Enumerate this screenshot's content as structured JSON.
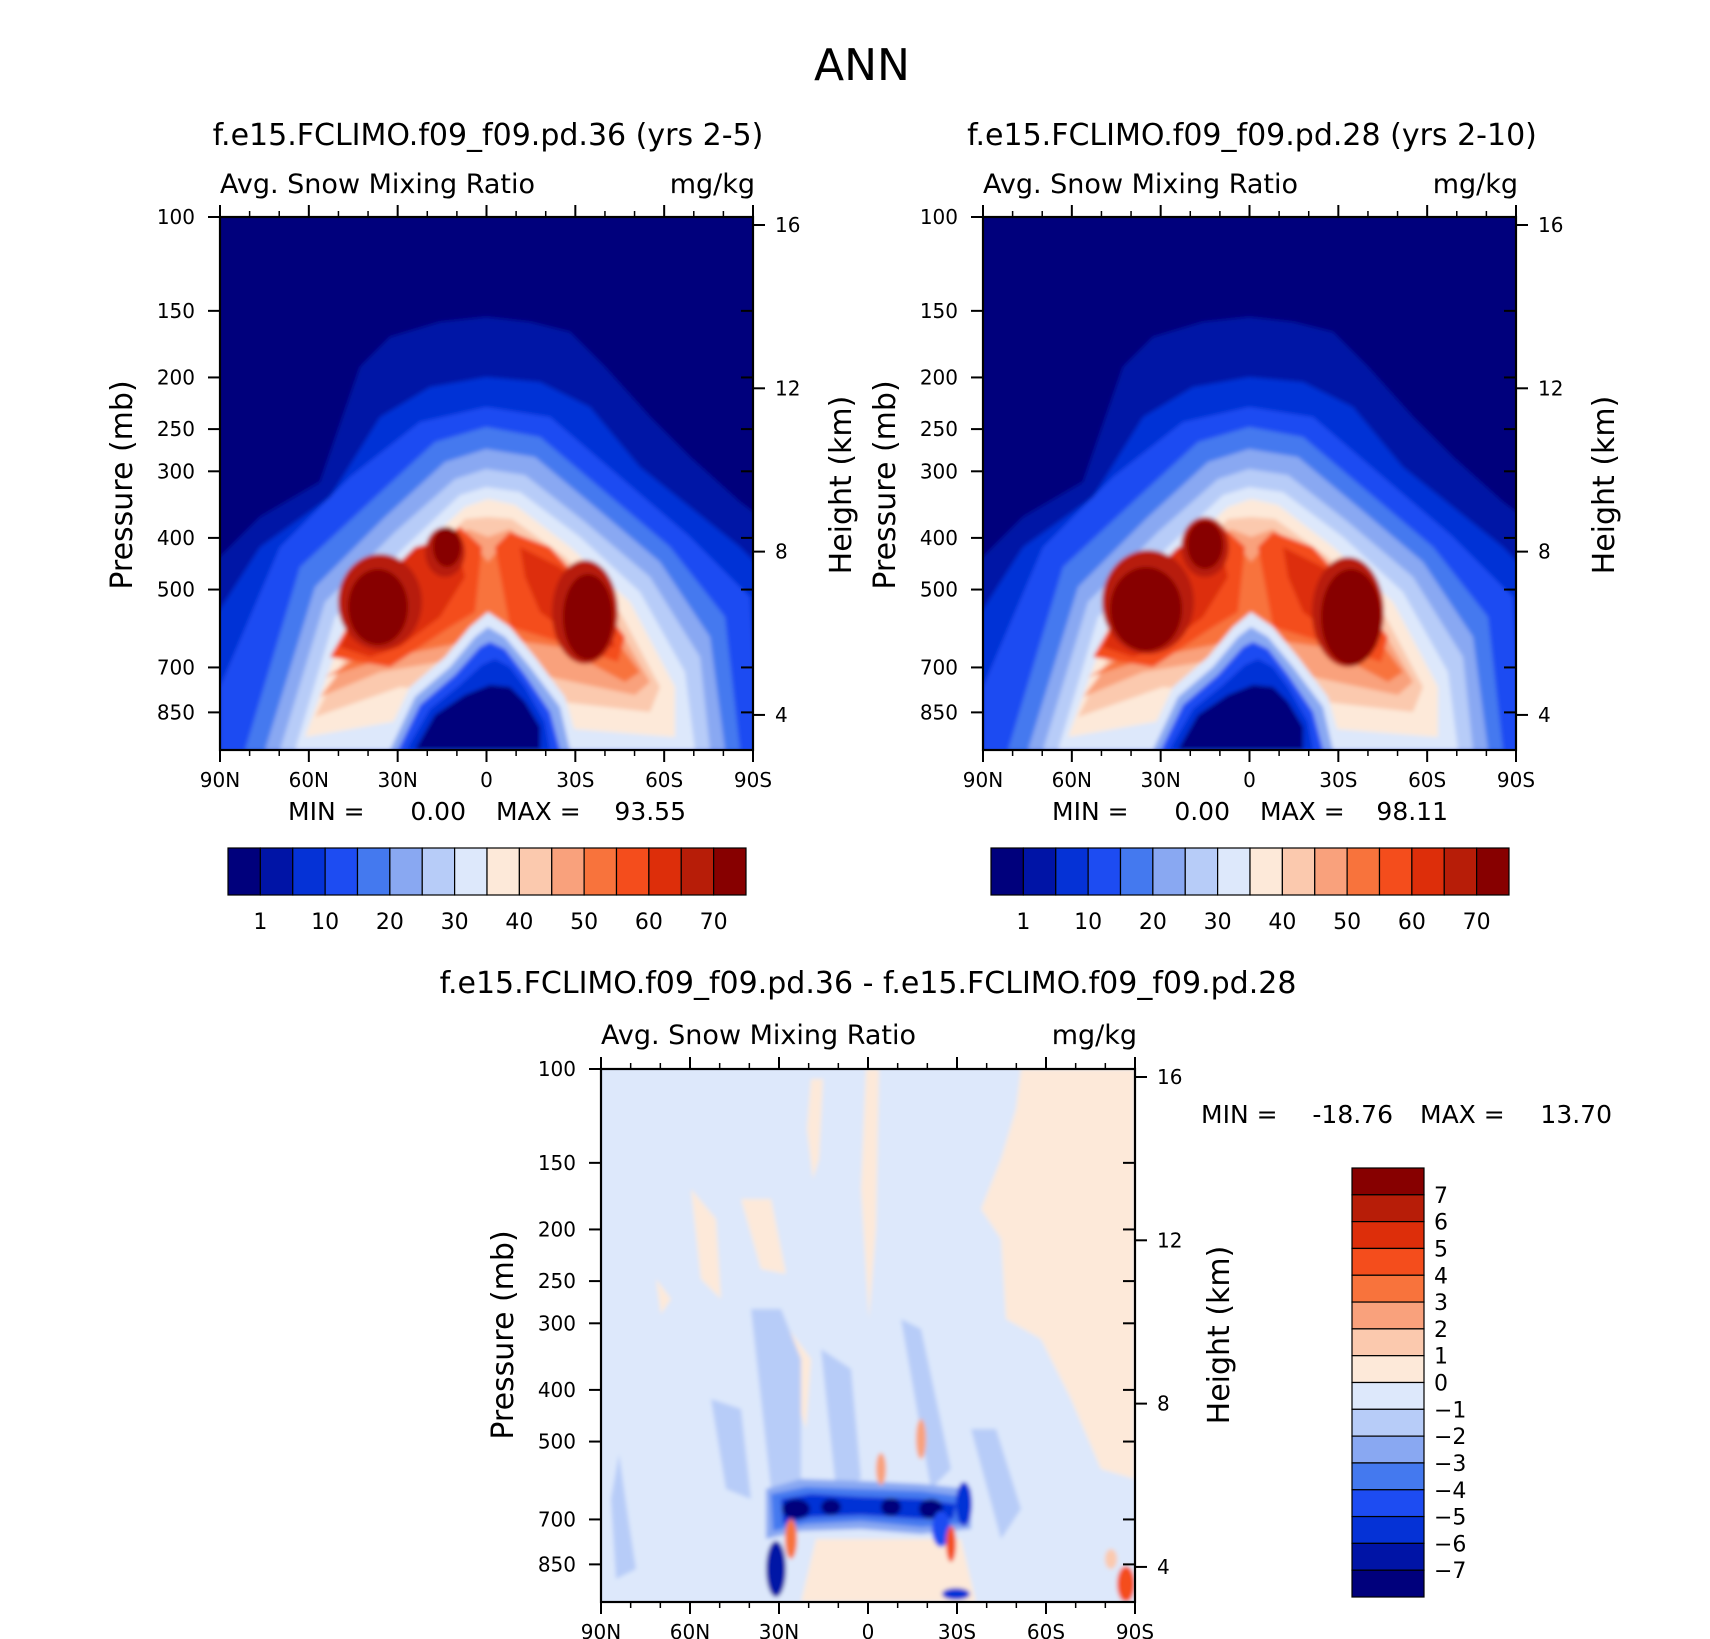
{
  "figure_title": "ANN",
  "chart_data": [
    {
      "type": "contour",
      "title": "f.e15.FCLIMO.f09_f09.pd.36 (yrs 2-5)",
      "variable": "Avg. Snow Mixing Ratio",
      "units": "mg/kg",
      "xlabel": "",
      "ylabel": "Pressure (mb)",
      "ylabel_right": "Height (km)",
      "x_ticks": [
        "90N",
        "60N",
        "30N",
        "0",
        "30S",
        "60S",
        "90S"
      ],
      "y_ticks": [
        "100",
        "150",
        "200",
        "250",
        "300",
        "400",
        "500",
        "700",
        "850"
      ],
      "y_ticks_right": [
        "16",
        "12",
        "8",
        "4"
      ],
      "ylim_mb": [
        1000,
        100
      ],
      "min_label": "MIN =",
      "min_value": "0.00",
      "max_label": "MAX =",
      "max_value": "93.55",
      "colorbar_levels": [
        "1",
        "10",
        "20",
        "30",
        "40",
        "50",
        "60",
        "70"
      ],
      "colors": [
        "#00007c",
        "#0014a6",
        "#0532d6",
        "#1d4cf2",
        "#4479ef",
        "#89a8f2",
        "#b7ccf8",
        "#dde8fb",
        "#fde9d9",
        "#fbc9ae",
        "#f9a17c",
        "#f8733c",
        "#f44d1c",
        "#dd2e0a",
        "#b71d08",
        "#870000"
      ]
    },
    {
      "type": "contour",
      "title": "f.e15.FCLIMO.f09_f09.pd.28 (yrs 2-10)",
      "variable": "Avg. Snow Mixing Ratio",
      "units": "mg/kg",
      "xlabel": "",
      "ylabel": "Pressure (mb)",
      "ylabel_right": "Height (km)",
      "x_ticks": [
        "90N",
        "60N",
        "30N",
        "0",
        "30S",
        "60S",
        "90S"
      ],
      "y_ticks": [
        "100",
        "150",
        "200",
        "250",
        "300",
        "400",
        "500",
        "700",
        "850"
      ],
      "y_ticks_right": [
        "16",
        "12",
        "8",
        "4"
      ],
      "ylim_mb": [
        1000,
        100
      ],
      "min_label": "MIN =",
      "min_value": "0.00",
      "max_label": "MAX =",
      "max_value": "98.11",
      "colorbar_levels": [
        "1",
        "10",
        "20",
        "30",
        "40",
        "50",
        "60",
        "70"
      ],
      "colors": [
        "#00007c",
        "#0014a6",
        "#0532d6",
        "#1d4cf2",
        "#4479ef",
        "#89a8f2",
        "#b7ccf8",
        "#dde8fb",
        "#fde9d9",
        "#fbc9ae",
        "#f9a17c",
        "#f8733c",
        "#f44d1c",
        "#dd2e0a",
        "#b71d08",
        "#870000"
      ]
    },
    {
      "type": "contour",
      "title": "f.e15.FCLIMO.f09_f09.pd.36 - f.e15.FCLIMO.f09_f09.pd.28",
      "variable": "Avg. Snow Mixing Ratio",
      "units": "mg/kg",
      "xlabel": "",
      "ylabel": "Pressure (mb)",
      "ylabel_right": "Height (km)",
      "x_ticks": [
        "90N",
        "60N",
        "30N",
        "0",
        "30S",
        "60S",
        "90S"
      ],
      "y_ticks": [
        "100",
        "150",
        "200",
        "250",
        "300",
        "400",
        "500",
        "700",
        "850"
      ],
      "y_ticks_right": [
        "16",
        "12",
        "8",
        "4"
      ],
      "ylim_mb": [
        1000,
        100
      ],
      "min_label": "MIN =",
      "min_value": "-18.76",
      "max_label": "MAX =",
      "max_value": "13.70",
      "colorbar_levels": [
        "7",
        "6",
        "5",
        "4",
        "3",
        "2",
        "1",
        "0",
        "-1",
        "-2",
        "-3",
        "-4",
        "-5",
        "-6",
        "-7"
      ],
      "colors": [
        "#870000",
        "#b71d08",
        "#dd2e0a",
        "#f44d1c",
        "#f8733c",
        "#f9a17c",
        "#fbc9ae",
        "#fde9d9",
        "#dde8fb",
        "#b7ccf8",
        "#89a8f2",
        "#4479ef",
        "#1d4cf2",
        "#0532d6",
        "#0014a6",
        "#00007c"
      ]
    }
  ]
}
